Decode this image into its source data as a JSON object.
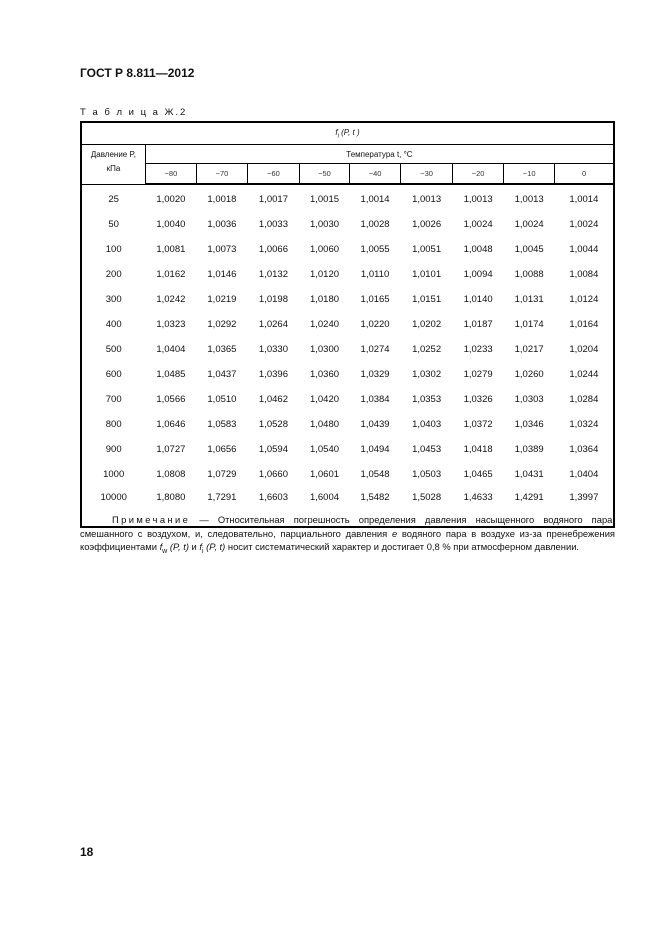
{
  "header": {
    "doc_title": "ГОСТ Р 8.811—2012"
  },
  "table": {
    "caption": "Т а б л и ц а  Ж.2",
    "title": {
      "f": "f",
      "sub": "i",
      "args": " (P, t )"
    },
    "pressure_header": {
      "line1": "Давление P,",
      "line2": "кПа"
    },
    "temperature_header": "Температура t, °С",
    "temperatures": [
      "−80",
      "−70",
      "−60",
      "−50",
      "−40",
      "−30",
      "−20",
      "−10",
      "0"
    ],
    "rows": [
      {
        "p": "25",
        "v": [
          "1,0020",
          "1,0018",
          "1,0017",
          "1,0015",
          "1,0014",
          "1,0013",
          "1,0013",
          "1,0013",
          "1,0014"
        ]
      },
      {
        "p": "50",
        "v": [
          "1,0040",
          "1,0036",
          "1,0033",
          "1,0030",
          "1,0028",
          "1,0026",
          "1,0024",
          "1,0024",
          "1,0024"
        ]
      },
      {
        "p": "100",
        "v": [
          "1,0081",
          "1,0073",
          "1,0066",
          "1,0060",
          "1,0055",
          "1,0051",
          "1,0048",
          "1,0045",
          "1,0044"
        ]
      },
      {
        "p": "200",
        "v": [
          "1,0162",
          "1,0146",
          "1,0132",
          "1,0120",
          "1,0110",
          "1,0101",
          "1,0094",
          "1,0088",
          "1,0084"
        ]
      },
      {
        "p": "300",
        "v": [
          "1,0242",
          "1,0219",
          "1,0198",
          "1,0180",
          "1,0165",
          "1,0151",
          "1,0140",
          "1,0131",
          "1,0124"
        ]
      },
      {
        "p": "400",
        "v": [
          "1,0323",
          "1,0292",
          "1,0264",
          "1,0240",
          "1,0220",
          "1,0202",
          "1,0187",
          "1,0174",
          "1,0164"
        ]
      },
      {
        "p": "500",
        "v": [
          "1,0404",
          "1,0365",
          "1,0330",
          "1,0300",
          "1,0274",
          "1,0252",
          "1,0233",
          "1,0217",
          "1,0204"
        ]
      },
      {
        "p": "600",
        "v": [
          "1,0485",
          "1,0437",
          "1,0396",
          "1,0360",
          "1,0329",
          "1,0302",
          "1,0279",
          "1,0260",
          "1,0244"
        ]
      },
      {
        "p": "700",
        "v": [
          "1,0566",
          "1,0510",
          "1,0462",
          "1,0420",
          "1,0384",
          "1,0353",
          "1,0326",
          "1,0303",
          "1,0284"
        ]
      },
      {
        "p": "800",
        "v": [
          "1,0646",
          "1,0583",
          "1,0528",
          "1,0480",
          "1,0439",
          "1,0403",
          "1,0372",
          "1,0346",
          "1,0324"
        ]
      },
      {
        "p": "900",
        "v": [
          "1,0727",
          "1,0656",
          "1,0594",
          "1,0540",
          "1,0494",
          "1,0453",
          "1,0418",
          "1,0389",
          "1,0364"
        ]
      },
      {
        "p": "1000",
        "v": [
          "1,0808",
          "1,0729",
          "1,0660",
          "1,0601",
          "1,0548",
          "1,0503",
          "1,0465",
          "1,0431",
          "1,0404"
        ]
      },
      {
        "p": "10000",
        "v": [
          "1,8080",
          "1,7291",
          "1,6603",
          "1,6004",
          "1,5482",
          "1,5028",
          "1,4633",
          "1,4291",
          "1,3997"
        ]
      }
    ]
  },
  "note": {
    "label": "Примечание",
    "t1": " — Относительная погрешность определения давления насыщенного водяного пара, смешанного с воздухом, и, следовательно, парциального давления ",
    "e": "e",
    "t2": " водяного пара в воздухе из-за пренебрежения коэффициентами ",
    "fw": "f",
    "fw_sub": "w",
    "args1": " (P, t)",
    "t3": "  и ",
    "fi": "f",
    "fi_sub": "i",
    "args2": " (P, t)",
    "t4": " носит систематический характер и достигает 0,8 % при атмосферном давлении."
  },
  "footer": {
    "page_number": "18"
  }
}
